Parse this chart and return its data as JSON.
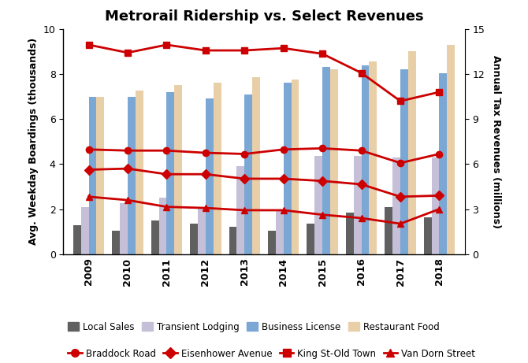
{
  "title": "Metrorail Ridership vs. Select Revenues",
  "years": [
    2009,
    2010,
    2011,
    2012,
    2013,
    2014,
    2015,
    2016,
    2017,
    2018
  ],
  "bar_data": {
    "local_sales": [
      1.3,
      1.05,
      1.5,
      1.35,
      1.2,
      1.05,
      1.35,
      1.85,
      2.1,
      1.65
    ],
    "transient_lodging": [
      2.1,
      2.25,
      2.5,
      2.1,
      3.9,
      2.0,
      4.35,
      4.35,
      4.3,
      4.3
    ],
    "business_license": [
      7.0,
      7.0,
      7.2,
      6.9,
      7.1,
      7.6,
      8.3,
      8.4,
      8.2,
      8.05
    ],
    "restaurant_food": [
      7.0,
      7.25,
      7.5,
      7.6,
      7.85,
      7.75,
      8.2,
      8.55,
      9.0,
      9.3
    ]
  },
  "bar_colors": {
    "local_sales": "#606060",
    "transient_lodging": "#c5c0d8",
    "business_license": "#7ba7d4",
    "restaurant_food": "#e8cfa8"
  },
  "line_data": {
    "king_st": [
      9.3,
      8.95,
      9.3,
      9.05,
      9.05,
      9.15,
      8.9,
      8.05,
      6.8,
      7.2
    ],
    "braddock_road": [
      4.65,
      4.6,
      4.6,
      4.5,
      4.45,
      4.65,
      4.7,
      4.6,
      4.05,
      4.45
    ],
    "eisenhower": [
      3.75,
      3.8,
      3.55,
      3.55,
      3.35,
      3.35,
      3.25,
      3.1,
      2.55,
      2.6
    ],
    "van_dorn": [
      2.55,
      2.4,
      2.1,
      2.05,
      1.95,
      1.95,
      1.75,
      1.6,
      1.35,
      2.0
    ]
  },
  "line_color": "#cc0000",
  "line_markers": {
    "king_st": "s",
    "braddock_road": "o",
    "eisenhower": "D",
    "van_dorn": "^"
  },
  "ylabel_left": "Avg. Weekday Boardings (thousands)",
  "ylabel_right": "Annual Tax Revenues (millions)",
  "ylim_left": [
    0,
    10
  ],
  "ylim_right": [
    0,
    15
  ],
  "yticks_left": [
    0,
    2,
    4,
    6,
    8,
    10
  ],
  "yticks_right": [
    0,
    3,
    6,
    9,
    12,
    15
  ],
  "legend_bars": [
    "Local Sales",
    "Transient Lodging",
    "Business License",
    "Restaurant Food"
  ],
  "legend_lines": [
    "Braddock Road",
    "Eisenhower Avenue",
    "King St-Old Town",
    "Van Dorn Street"
  ],
  "legend_line_markers": [
    "o",
    "D",
    "s",
    "^"
  ]
}
